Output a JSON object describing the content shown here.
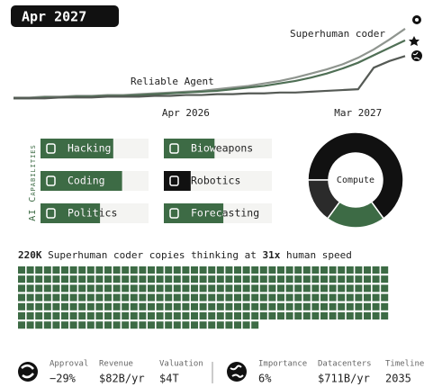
{
  "date": "Apr 2027",
  "chart_data": [
    {
      "type": "line",
      "x": [
        null,
        null,
        null,
        null,
        null,
        null,
        null,
        null,
        null,
        null,
        null,
        "Apr 2026",
        null,
        null,
        null,
        null,
        null,
        null,
        null,
        null,
        null,
        null,
        "Mar 2027",
        null,
        null,
        null
      ],
      "ylim": [
        0,
        100
      ],
      "annotations": [
        "Superhuman coder",
        "Reliable Agent"
      ],
      "series": [
        {
          "color": "#8f958f",
          "values": [
            4,
            4,
            5,
            5,
            6,
            6,
            7,
            7,
            8,
            9,
            10,
            11,
            12,
            14,
            16,
            18,
            21,
            24,
            28,
            33,
            38,
            44,
            52,
            62,
            74,
            87
          ]
        },
        {
          "color": "#4f6f55",
          "values": [
            3,
            3,
            4,
            4,
            5,
            5,
            6,
            6,
            7,
            8,
            9,
            10,
            11,
            12,
            14,
            16,
            18,
            21,
            24,
            28,
            33,
            39,
            46,
            55,
            64,
            73
          ]
        },
        {
          "color": "#555a55",
          "values": [
            3,
            3,
            3,
            4,
            4,
            4,
            5,
            5,
            5,
            6,
            6,
            7,
            7,
            8,
            8,
            9,
            9,
            10,
            10,
            11,
            12,
            13,
            14,
            40,
            48,
            54
          ]
        }
      ]
    },
    {
      "type": "pie",
      "title": "Compute",
      "values": [
        65,
        20,
        15
      ],
      "colors": [
        "#111111",
        "#3d6b45",
        "#2b2b2b"
      ]
    }
  ],
  "capabilities": {
    "title": "AI Capabilities",
    "items": [
      {
        "label": "Hacking",
        "level": 60
      },
      {
        "label": "Bioweapons",
        "level": 35
      },
      {
        "label": "Coding",
        "level": 70
      },
      {
        "label": "Robotics",
        "level": 8
      },
      {
        "label": "Politics",
        "level": 45
      },
      {
        "label": "Forecasting",
        "level": 45
      }
    ]
  },
  "copies": {
    "count": "220K",
    "text": "Superhuman coder copies thinking at",
    "speed": "31x",
    "speed_text": "human speed",
    "squares": 286
  },
  "stats": [
    {
      "label": "Approval",
      "value": "−29%"
    },
    {
      "label": "Revenue",
      "value": "$82B/yr"
    },
    {
      "label": "Valuation",
      "value": "$4T"
    },
    {
      "label": "Importance",
      "value": "6%"
    },
    {
      "label": "Datacenters",
      "value": "$711B/yr"
    },
    {
      "label": "Timeline",
      "value": "2035"
    }
  ]
}
